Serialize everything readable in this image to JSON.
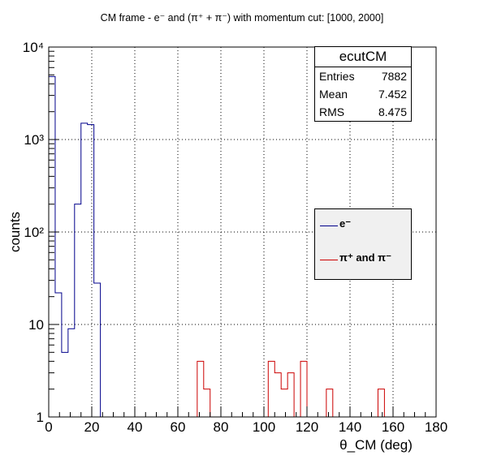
{
  "title": "CM frame - e⁻ and (π⁺ + π⁻) with momentum cut: [1000, 2000]",
  "stats_box": {
    "name": "ecutCM",
    "rows": [
      {
        "label": "Entries",
        "value": "7882"
      },
      {
        "label": "Mean",
        "value": "7.452"
      },
      {
        "label": "RMS",
        "value": "8.475"
      }
    ]
  },
  "legend": {
    "items": [
      {
        "label": "e⁻",
        "color": "#00008b"
      },
      {
        "label": "π⁺ and π⁻",
        "color": "#cc0000"
      }
    ]
  },
  "chart_data": {
    "type": "histogram",
    "xlabel": "θ_CM (deg)",
    "ylabel": "counts",
    "xlim": [
      0,
      180
    ],
    "ylim": [
      1,
      10000
    ],
    "yscale": "log",
    "grid": true,
    "bin_width": 3,
    "x_ticks": [
      0,
      20,
      40,
      60,
      80,
      100,
      120,
      140,
      160,
      180
    ],
    "y_ticks": [
      {
        "value": 1,
        "label": "1"
      },
      {
        "value": 10,
        "label": "10"
      },
      {
        "value": 100,
        "label": "10²"
      },
      {
        "value": 1000,
        "label": "10³"
      },
      {
        "value": 10000,
        "label": "10⁴"
      }
    ],
    "series": [
      {
        "name": "e⁻",
        "color": "#00008b",
        "bins": [
          {
            "x": 0,
            "y": 4800
          },
          {
            "x": 3,
            "y": 22
          },
          {
            "x": 6,
            "y": 5
          },
          {
            "x": 9,
            "y": 9
          },
          {
            "x": 12,
            "y": 200
          },
          {
            "x": 15,
            "y": 1500
          },
          {
            "x": 18,
            "y": 1450
          },
          {
            "x": 21,
            "y": 28
          }
        ]
      },
      {
        "name": "π⁺ and π⁻",
        "color": "#cc0000",
        "bins": [
          {
            "x": 69,
            "y": 4
          },
          {
            "x": 72,
            "y": 2
          },
          {
            "x": 102,
            "y": 4
          },
          {
            "x": 105,
            "y": 3
          },
          {
            "x": 108,
            "y": 2
          },
          {
            "x": 111,
            "y": 3
          },
          {
            "x": 117,
            "y": 4
          },
          {
            "x": 129,
            "y": 2
          },
          {
            "x": 153,
            "y": 2
          }
        ]
      }
    ]
  }
}
